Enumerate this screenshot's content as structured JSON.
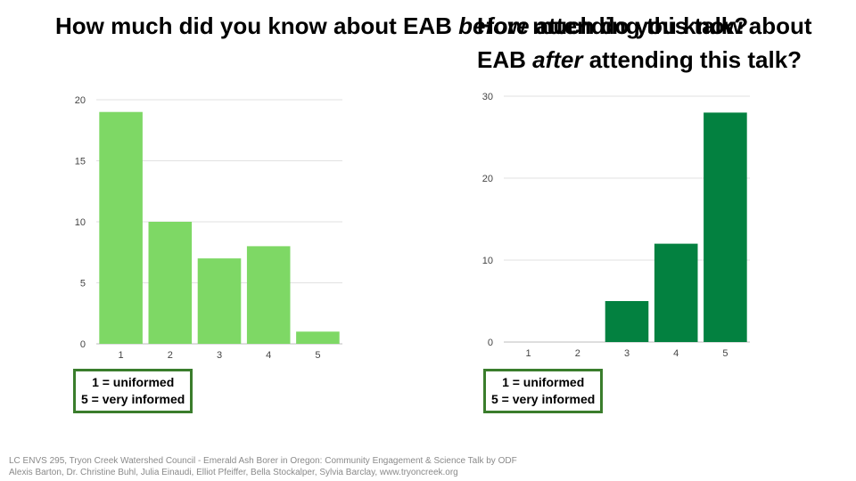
{
  "titles": {
    "left": {
      "pre": "How much did you know about EAB ",
      "em": "before",
      "post": " attending this talk?"
    },
    "right": {
      "pre": "How much do you know about EAB ",
      "em": "after",
      "post": " attending this talk?"
    }
  },
  "legend": {
    "line1": "1 = uniformed",
    "line2": "5 = very informed"
  },
  "footer": {
    "line1": "LC ENVS 295, Tryon Creek Watershed Council - Emerald Ash Borer in Oregon: Community Engagement & Science Talk by ODF",
    "line2": "Alexis Barton, Dr. Christine Buhl, Julia Einaudi, Elliot Pfeiffer, Bella Stockalper, Sylvia Barclay, www.tryoncreek.org"
  },
  "chart_data": [
    {
      "type": "bar",
      "categories": [
        "1",
        "2",
        "3",
        "4",
        "5"
      ],
      "values": [
        19,
        10,
        7,
        8,
        1
      ],
      "ylim": [
        0,
        20
      ],
      "yticks": [
        0,
        5,
        10,
        15,
        20
      ],
      "grid": true,
      "color": "#7ed865"
    },
    {
      "type": "bar",
      "categories": [
        "1",
        "2",
        "3",
        "4",
        "5"
      ],
      "values": [
        0,
        0,
        5,
        12,
        28
      ],
      "ylim": [
        0,
        30
      ],
      "yticks": [
        0,
        10,
        20,
        30
      ],
      "grid": true,
      "color": "#038140"
    }
  ]
}
